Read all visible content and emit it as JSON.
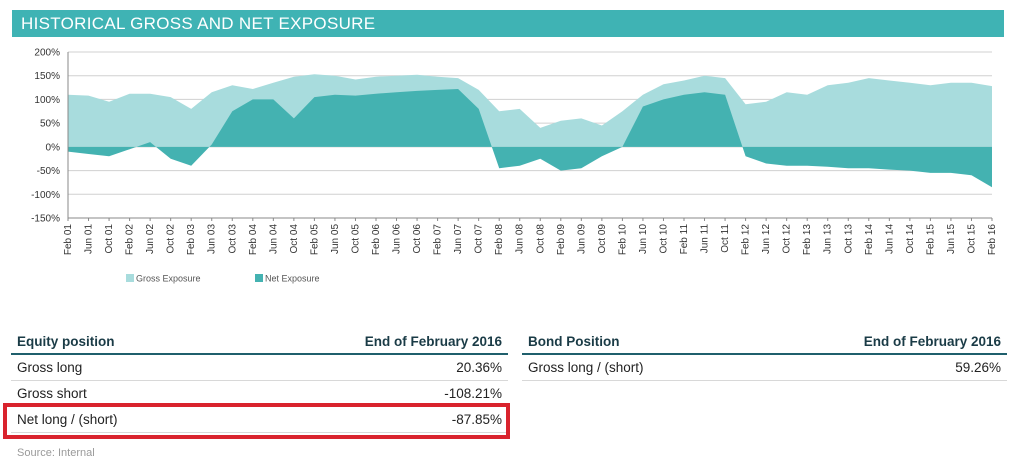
{
  "title": "HISTORICAL GROSS AND NET EXPOSURE",
  "chart_data": {
    "type": "area",
    "y_ticks": [
      "200%",
      "150%",
      "100%",
      "50%",
      "0%",
      "-50%",
      "-100%",
      "-150%"
    ],
    "ylim": [
      -150,
      200
    ],
    "x_tick_labels": [
      "Feb 01",
      "Jun 01",
      "Oct 01",
      "Feb 02",
      "Jun 02",
      "Oct 02",
      "Feb 03",
      "Jun 03",
      "Oct 03",
      "Feb 04",
      "Jun 04",
      "Oct 04",
      "Feb 05",
      "Jun 05",
      "Oct 05",
      "Feb 06",
      "Jun 06",
      "Oct 06",
      "Feb 07",
      "Jun 07",
      "Oct 07",
      "Feb 08",
      "Jun 08",
      "Oct 08",
      "Feb 09",
      "Jun 09",
      "Oct 09",
      "Feb 10",
      "Jun 10",
      "Oct 10",
      "Feb 11",
      "Jun 11",
      "Oct 11",
      "Feb 12",
      "Jun 12",
      "Oct 12",
      "Feb 13",
      "Jun 13",
      "Oct 13",
      "Feb 14",
      "Jun 14",
      "Oct 14",
      "Feb 15",
      "Jun 15",
      "Oct 15",
      "Feb 16"
    ],
    "x_range": [
      "Feb 01",
      "Feb 16"
    ],
    "series": [
      {
        "name": "Gross Exposure",
        "color": "#a8dcdd",
        "points": [
          [
            "Feb 01",
            110
          ],
          [
            "Jun 01",
            108
          ],
          [
            "Oct 01",
            95
          ],
          [
            "Feb 02",
            112
          ],
          [
            "Jun 02",
            112
          ],
          [
            "Oct 02",
            105
          ],
          [
            "Feb 03",
            80
          ],
          [
            "Jun 03",
            115
          ],
          [
            "Oct 03",
            130
          ],
          [
            "Feb 04",
            122
          ],
          [
            "Jun 04",
            135
          ],
          [
            "Oct 04",
            148
          ],
          [
            "Feb 05",
            153
          ],
          [
            "Jun 05",
            150
          ],
          [
            "Oct 05",
            142
          ],
          [
            "Feb 06",
            148
          ],
          [
            "Jun 06",
            150
          ],
          [
            "Oct 06",
            152
          ],
          [
            "Feb 07",
            148
          ],
          [
            "Jun 07",
            145
          ],
          [
            "Oct 07",
            120
          ],
          [
            "Feb 08",
            75
          ],
          [
            "Jun 08",
            80
          ],
          [
            "Oct 08",
            40
          ],
          [
            "Feb 09",
            55
          ],
          [
            "Jun 09",
            60
          ],
          [
            "Oct 09",
            45
          ],
          [
            "Feb 10",
            75
          ],
          [
            "Jun 10",
            110
          ],
          [
            "Oct 10",
            132
          ],
          [
            "Feb 11",
            140
          ],
          [
            "Jun 11",
            150
          ],
          [
            "Oct 11",
            145
          ],
          [
            "Feb 12",
            90
          ],
          [
            "Jun 12",
            95
          ],
          [
            "Oct 12",
            115
          ],
          [
            "Feb 13",
            110
          ],
          [
            "Jun 13",
            130
          ],
          [
            "Oct 13",
            135
          ],
          [
            "Feb 14",
            145
          ],
          [
            "Jun 14",
            140
          ],
          [
            "Oct 14",
            135
          ],
          [
            "Feb 15",
            130
          ],
          [
            "Jun 15",
            135
          ],
          [
            "Oct 15",
            135
          ],
          [
            "Feb 16",
            128
          ]
        ]
      },
      {
        "name": "Net Exposure",
        "color": "#44b2b1",
        "points": [
          [
            "Feb 01",
            -10
          ],
          [
            "Jun 01",
            -15
          ],
          [
            "Oct 01",
            -20
          ],
          [
            "Feb 02",
            -5
          ],
          [
            "Jun 02",
            10
          ],
          [
            "Oct 02",
            -25
          ],
          [
            "Feb 03",
            -40
          ],
          [
            "Jun 03",
            5
          ],
          [
            "Oct 03",
            75
          ],
          [
            "Feb 04",
            100
          ],
          [
            "Jun 04",
            100
          ],
          [
            "Oct 04",
            60
          ],
          [
            "Feb 05",
            105
          ],
          [
            "Jun 05",
            110
          ],
          [
            "Oct 05",
            108
          ],
          [
            "Feb 06",
            112
          ],
          [
            "Jun 06",
            115
          ],
          [
            "Oct 06",
            118
          ],
          [
            "Feb 07",
            120
          ],
          [
            "Jun 07",
            122
          ],
          [
            "Oct 07",
            80
          ],
          [
            "Feb 08",
            -45
          ],
          [
            "Jun 08",
            -40
          ],
          [
            "Oct 08",
            -25
          ],
          [
            "Feb 09",
            -50
          ],
          [
            "Jun 09",
            -45
          ],
          [
            "Oct 09",
            -20
          ],
          [
            "Feb 10",
            0
          ],
          [
            "Jun 10",
            85
          ],
          [
            "Oct 10",
            100
          ],
          [
            "Feb 11",
            110
          ],
          [
            "Jun 11",
            115
          ],
          [
            "Oct 11",
            110
          ],
          [
            "Feb 12",
            -20
          ],
          [
            "Jun 12",
            -35
          ],
          [
            "Oct 12",
            -40
          ],
          [
            "Feb 13",
            -40
          ],
          [
            "Jun 13",
            -42
          ],
          [
            "Oct 13",
            -45
          ],
          [
            "Feb 14",
            -45
          ],
          [
            "Jun 14",
            -48
          ],
          [
            "Oct 14",
            -50
          ],
          [
            "Feb 15",
            -55
          ],
          [
            "Jun 15",
            -55
          ],
          [
            "Oct 15",
            -60
          ],
          [
            "Feb 16",
            -85
          ]
        ]
      }
    ],
    "legend": [
      "Gross Exposure",
      "Net Exposure"
    ],
    "legend_position": "bottom-left"
  },
  "equity_table": {
    "header": "Equity position",
    "column": "End of February 2016",
    "rows": [
      {
        "label": "Gross long",
        "value": "20.36%"
      },
      {
        "label": "Gross short",
        "value": "-108.21%"
      },
      {
        "label": "Net long / (short)",
        "value": "-87.85%"
      }
    ],
    "highlight_color": "#d9232d"
  },
  "bond_table": {
    "header": "Bond Position",
    "column": "End of February 2016",
    "rows": [
      {
        "label": "Gross long / (short)",
        "value": "59.26%"
      }
    ]
  },
  "source": "Source: Internal"
}
